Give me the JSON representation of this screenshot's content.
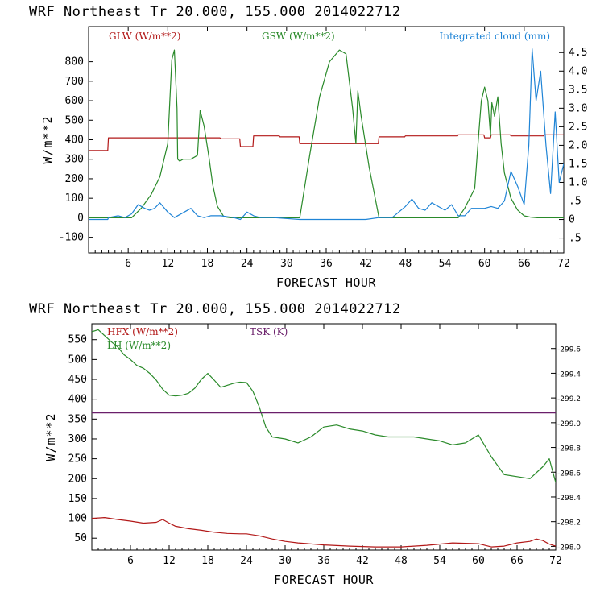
{
  "chart_data": [
    {
      "type": "line",
      "title": "WRF  Northeast Tr  20.000, 155.000  2014022712",
      "xlabel": "FORECAST HOUR",
      "ylabel": "W/m**2",
      "xlim": [
        0,
        72
      ],
      "ylim": [
        -180,
        980
      ],
      "xticks": [
        6,
        12,
        18,
        24,
        30,
        36,
        42,
        48,
        54,
        60,
        66,
        72
      ],
      "yticks": [
        -100,
        0,
        100,
        200,
        300,
        400,
        500,
        600,
        700,
        800
      ],
      "y2lim": [
        -0.9,
        5.2
      ],
      "y2ticks": [
        -0.5,
        0,
        0.5,
        1.0,
        1.5,
        2.0,
        2.5,
        3.0,
        3.5,
        4.0,
        4.5
      ],
      "y2ticklabels": [
        ".5",
        "0",
        ".5",
        "1.0",
        "1.5",
        "2.0",
        "2.5",
        "3.0",
        "3.5",
        "4.0",
        "4.5"
      ],
      "series": [
        {
          "name": "GLW (W/m**2)",
          "color": "#b21818",
          "axis": "left",
          "x": [
            0,
            2.9,
            3,
            19.9,
            20,
            22.9,
            23,
            24.9,
            25,
            28.9,
            29,
            31.9,
            32,
            43.9,
            44,
            47.9,
            48,
            55.9,
            56,
            59.9,
            60,
            60.9,
            61,
            63.9,
            64,
            68.9,
            69,
            72
          ],
          "y": [
            345,
            345,
            410,
            410,
            405,
            405,
            365,
            365,
            420,
            420,
            415,
            415,
            380,
            380,
            415,
            415,
            420,
            420,
            425,
            425,
            410,
            410,
            425,
            425,
            420,
            420,
            425,
            425
          ]
        },
        {
          "name": "GSW (W/m**2)",
          "color": "#2a8a2a",
          "axis": "left",
          "x": [
            0,
            6.5,
            8,
            9.5,
            10.8,
            12,
            12.6,
            13,
            13.4,
            13.5,
            13.8,
            14.3,
            15.5,
            16.5,
            16.9,
            17.5,
            18.2,
            18.8,
            19.5,
            20.5,
            21.5,
            32,
            33.5,
            35,
            36.5,
            38,
            39,
            40,
            40.5,
            40.8,
            41.3,
            42.5,
            44,
            56,
            57,
            58.5,
            59,
            59.5,
            60,
            60.5,
            60.9,
            61.1,
            61.5,
            62,
            62.5,
            63,
            64,
            65,
            66,
            67,
            68,
            72
          ],
          "y": [
            0,
            0,
            50,
            120,
            210,
            380,
            810,
            860,
            560,
            300,
            290,
            300,
            300,
            320,
            550,
            470,
            320,
            170,
            60,
            5,
            0,
            0,
            320,
            620,
            800,
            860,
            840,
            560,
            380,
            650,
            520,
            260,
            0,
            0,
            50,
            150,
            380,
            600,
            670,
            600,
            420,
            590,
            520,
            620,
            380,
            230,
            100,
            40,
            10,
            3,
            0,
            0
          ]
        },
        {
          "name": "Integrated cloud (mm)",
          "color": "#1f84d6",
          "axis": "right",
          "x": [
            0,
            2.9,
            3,
            4.5,
            5.5,
            6.5,
            7.5,
            8.5,
            9.2,
            10,
            10.8,
            12,
            13,
            14.5,
            15.5,
            16.5,
            17.5,
            18.5,
            20,
            22,
            23,
            24,
            25,
            26,
            28,
            32,
            36,
            42,
            44,
            46,
            47,
            48,
            49,
            50,
            51,
            52,
            53,
            54,
            55,
            56,
            57,
            58,
            59,
            60,
            61,
            62,
            63,
            64,
            65,
            66,
            66.7,
            67.2,
            67.8,
            68.5,
            69.3,
            70,
            70.7,
            71.3,
            72
          ],
          "y": [
            0,
            0,
            0.05,
            0.1,
            0.05,
            0.15,
            0.4,
            0.3,
            0.25,
            0.3,
            0.45,
            0.2,
            0.05,
            0.2,
            0.3,
            0.1,
            0.05,
            0.1,
            0.1,
            0.05,
            0.0,
            0.2,
            0.1,
            0.05,
            0.05,
            0.0,
            0.0,
            0.0,
            0.05,
            0.05,
            0.2,
            0.35,
            0.55,
            0.3,
            0.25,
            0.45,
            0.35,
            0.25,
            0.4,
            0.1,
            0.1,
            0.3,
            0.3,
            0.3,
            0.35,
            0.3,
            0.5,
            1.3,
            0.9,
            0.4,
            2.0,
            4.6,
            3.2,
            4.0,
            2.0,
            0.7,
            2.9,
            1.0,
            1.5
          ]
        }
      ]
    },
    {
      "type": "line",
      "title": "WRF  Northeast Tr  20.000, 155.000  2014022712",
      "xlabel": "FORECAST HOUR",
      "ylabel": "W/m**2",
      "xlim": [
        0,
        72
      ],
      "ylim": [
        20,
        590
      ],
      "xticks": [
        6,
        12,
        18,
        24,
        30,
        36,
        42,
        48,
        54,
        60,
        66,
        72
      ],
      "yticks": [
        50,
        100,
        150,
        200,
        250,
        300,
        350,
        400,
        450,
        500,
        550
      ],
      "y2lim": [
        297.97,
        299.8
      ],
      "y2ticks": [
        298.0,
        298.2,
        298.4,
        298.6,
        298.8,
        299.0,
        299.2,
        299.4,
        299.6
      ],
      "y2ticklabels": [
        "-298.0",
        "-298.2",
        "-298.4",
        "-298.6",
        "-298.8",
        "-299.0",
        "-299.2",
        "-299.4",
        "-299.6"
      ],
      "series": [
        {
          "name": "HFX (W/m**2)",
          "color": "#b21818",
          "axis": "left",
          "x": [
            0,
            2,
            4,
            6,
            8,
            10,
            11,
            12,
            13,
            15,
            17,
            19,
            21,
            23,
            24,
            26,
            28,
            30,
            32,
            36,
            40,
            44,
            48,
            52,
            56,
            60,
            62,
            64,
            66,
            68,
            69,
            70,
            71,
            72
          ],
          "y": [
            100,
            102,
            97,
            93,
            88,
            90,
            97,
            88,
            80,
            74,
            70,
            65,
            62,
            61,
            61,
            56,
            48,
            42,
            38,
            33,
            30,
            28,
            28,
            32,
            38,
            36,
            28,
            30,
            38,
            42,
            48,
            44,
            35,
            30
          ]
        },
        {
          "name": "LH  (W/m**2)",
          "color": "#2a8a2a",
          "axis": "left",
          "x": [
            0,
            1,
            2,
            3,
            4,
            5,
            6,
            7,
            8,
            9,
            10,
            11,
            12,
            13,
            14,
            15,
            16,
            17,
            18,
            19,
            20,
            21,
            22,
            23,
            24,
            25,
            26,
            27,
            28,
            30,
            32,
            34,
            36,
            38,
            40,
            42,
            44,
            46,
            48,
            50,
            52,
            54,
            56,
            58,
            60,
            62,
            64,
            66,
            68,
            70,
            71,
            72
          ],
          "y": [
            570,
            575,
            560,
            545,
            532,
            512,
            500,
            485,
            478,
            465,
            448,
            425,
            410,
            408,
            410,
            415,
            428,
            450,
            465,
            448,
            430,
            435,
            440,
            443,
            442,
            420,
            380,
            330,
            305,
            300,
            290,
            305,
            330,
            335,
            325,
            320,
            310,
            305,
            305,
            305,
            300,
            295,
            285,
            290,
            310,
            255,
            210,
            205,
            200,
            230,
            250,
            190
          ]
        },
        {
          "name": "TSK (K)",
          "color": "#6a1f6a",
          "axis": "right",
          "x": [
            0,
            72
          ],
          "y": [
            299.08,
            299.08
          ]
        }
      ]
    }
  ]
}
